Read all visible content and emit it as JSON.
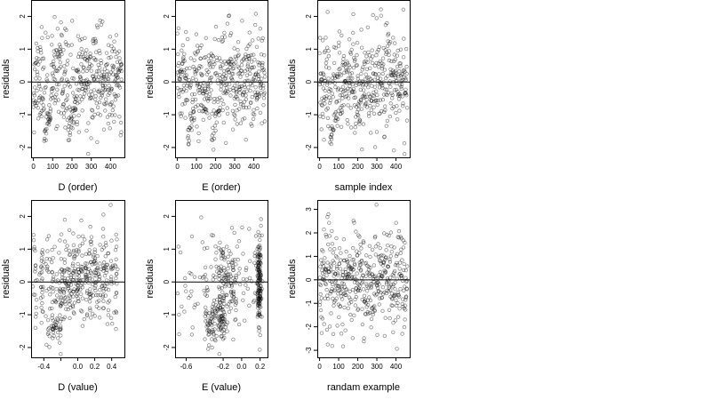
{
  "chart_data": [
    {
      "type": "scatter",
      "xlabel": "D (order)",
      "ylabel": "residuals",
      "xlim": [
        -12,
        472
      ],
      "ylim": [
        -2.3,
        2.5
      ],
      "xticks": [
        0,
        100,
        200,
        300,
        400
      ],
      "xtick_labels": [
        "0",
        "100",
        "200",
        "300",
        "400"
      ],
      "yticks": [
        -2,
        -1,
        0,
        1,
        2
      ],
      "ytick_labels": [
        "-2",
        "-1",
        "0",
        "1",
        "2"
      ],
      "reference_line_y": 0,
      "pattern": "order",
      "seed": 11
    },
    {
      "type": "scatter",
      "xlabel": "E (order)",
      "ylabel": "residuals",
      "xlim": [
        -12,
        472
      ],
      "ylim": [
        -2.3,
        2.5
      ],
      "xticks": [
        0,
        100,
        200,
        300,
        400
      ],
      "xtick_labels": [
        "0",
        "100",
        "200",
        "300",
        "400"
      ],
      "yticks": [
        -2,
        -1,
        0,
        1,
        2
      ],
      "ytick_labels": [
        "-2",
        "-1",
        "0",
        "1",
        "2"
      ],
      "reference_line_y": 0,
      "pattern": "order",
      "seed": 23
    },
    {
      "type": "scatter",
      "xlabel": "sample index",
      "ylabel": "residuals",
      "xlim": [
        -12,
        472
      ],
      "ylim": [
        -2.3,
        2.5
      ],
      "xticks": [
        0,
        100,
        200,
        300,
        400
      ],
      "xtick_labels": [
        "0",
        "100",
        "200",
        "300",
        "400"
      ],
      "yticks": [
        -2,
        -1,
        0,
        1,
        2
      ],
      "ytick_labels": [
        "-2",
        "-1",
        "0",
        "1",
        "2"
      ],
      "reference_line_y": 0,
      "pattern": "order",
      "seed": 37
    },
    {
      "type": "scatter",
      "xlabel": "D (value)",
      "ylabel": "residuals",
      "xlim": [
        -0.55,
        0.55
      ],
      "ylim": [
        -2.3,
        2.5
      ],
      "xticks": [
        -0.4,
        -0.2,
        0,
        0.2,
        0.4
      ],
      "xtick_labels": [
        "-0.4",
        "",
        "0.0",
        "0.2",
        "0.4"
      ],
      "yticks": [
        -2,
        -1,
        0,
        1,
        2
      ],
      "ytick_labels": [
        "-2",
        "-1",
        "0",
        "1",
        "2"
      ],
      "reference_line_y": 0,
      "pattern": "dvalue",
      "seed": 41
    },
    {
      "type": "scatter",
      "xlabel": "E (value)",
      "ylabel": "residuals",
      "xlim": [
        -0.72,
        0.28
      ],
      "ylim": [
        -2.3,
        2.5
      ],
      "xticks": [
        -0.6,
        -0.2,
        0,
        0.2
      ],
      "xtick_labels": [
        "-0.6",
        "-0.2",
        "0.0",
        "0.2"
      ],
      "yticks": [
        -2,
        -1,
        0,
        1,
        2
      ],
      "ytick_labels": [
        "-2",
        "-1",
        "0",
        "1",
        "2"
      ],
      "reference_line_y": 0,
      "pattern": "evalue",
      "seed": 53
    },
    {
      "type": "scatter",
      "xlabel": "randam example",
      "ylabel": "residuals",
      "xlim": [
        -12,
        472
      ],
      "ylim": [
        -3.3,
        3.4
      ],
      "xticks": [
        0,
        100,
        200,
        300,
        400
      ],
      "xtick_labels": [
        "0",
        "100",
        "200",
        "300",
        "400"
      ],
      "yticks": [
        -3,
        -2,
        -1,
        0,
        1,
        2,
        3
      ],
      "ytick_labels": [
        "-3",
        "-2",
        "-1",
        "0",
        "1",
        "2",
        "3"
      ],
      "reference_line_y": 0,
      "pattern": "random",
      "seed": 67
    }
  ],
  "style": {
    "point_color": "#000000",
    "point_opacity": 0.45,
    "line_color": "#000000",
    "frame_color": "#000000"
  }
}
